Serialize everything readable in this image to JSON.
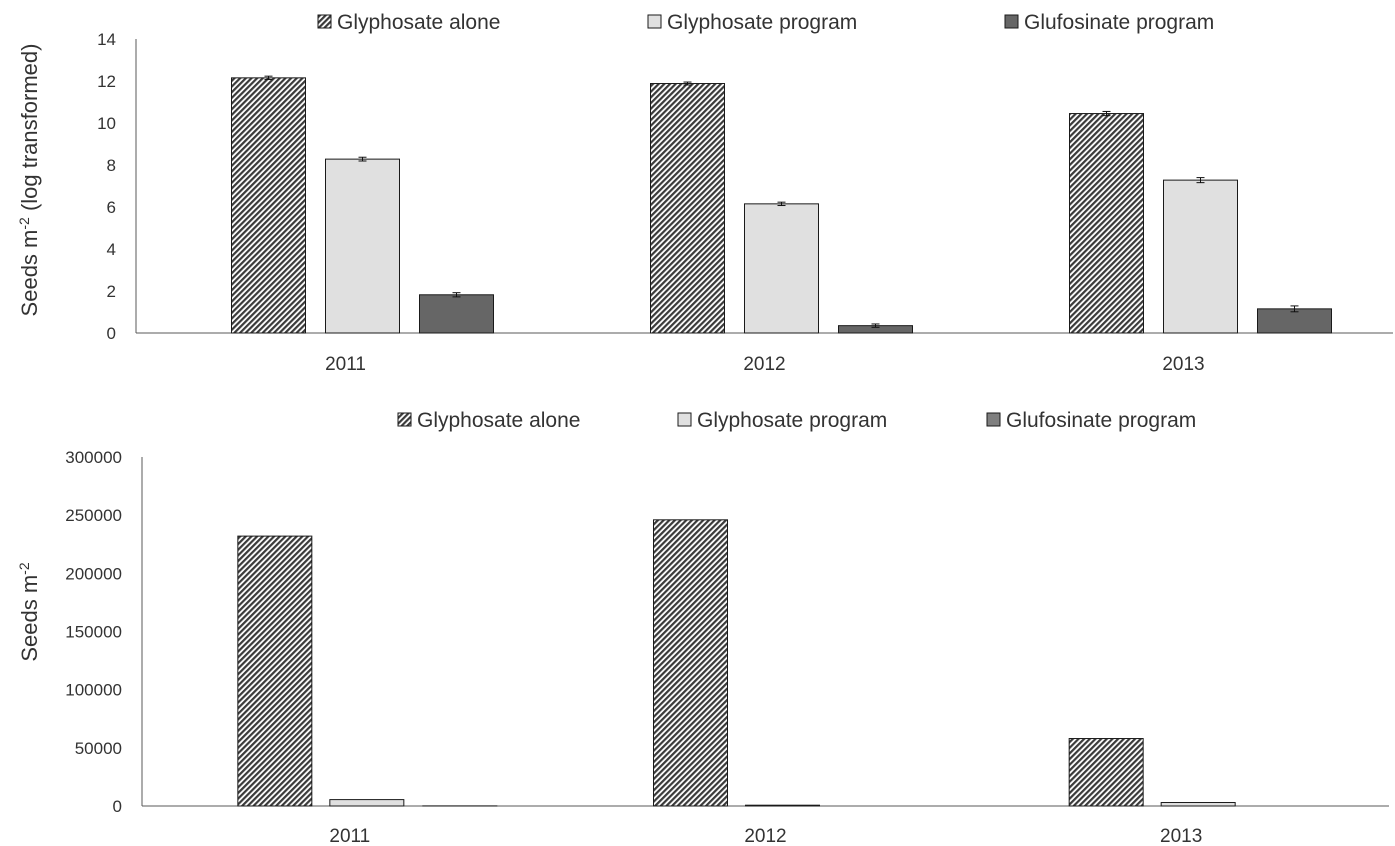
{
  "chart_data": [
    {
      "type": "bar",
      "categories": [
        "2011",
        "2012",
        "2013"
      ],
      "series": [
        {
          "name": "Glyphosate alone",
          "values": [
            12.15,
            11.88,
            10.45
          ],
          "errors": [
            0.08,
            0.07,
            0.1
          ]
        },
        {
          "name": "Glyphosate program",
          "values": [
            8.28,
            6.15,
            7.28
          ],
          "errors": [
            0.09,
            0.08,
            0.12
          ]
        },
        {
          "name": "Glufosinate program",
          "values": [
            1.82,
            0.35,
            1.15
          ],
          "errors": [
            0.1,
            0.08,
            0.14
          ]
        }
      ],
      "ylabel": "Seeds m",
      "ylabel_superscript": "-2",
      "ylabel_suffix": " (log transformed)",
      "ylim": [
        0,
        14
      ],
      "yticks": [
        "0",
        "2",
        "4",
        "6",
        "8",
        "10",
        "12",
        "14"
      ],
      "legend_position": "top",
      "grid": false
    },
    {
      "type": "bar",
      "categories": [
        "2011",
        "2012",
        "2013"
      ],
      "series": [
        {
          "name": "Glyphosate alone",
          "values": [
            232000,
            246000,
            58000
          ]
        },
        {
          "name": "Glyphosate program",
          "values": [
            5500,
            700,
            3000
          ]
        },
        {
          "name": "Glufosinate program",
          "values": [
            100,
            0,
            0
          ]
        }
      ],
      "ylabel": "Seeds m",
      "ylabel_superscript": "-2",
      "ylabel_suffix": "",
      "ylim": [
        0,
        300000
      ],
      "yticks": [
        "0",
        "50000",
        "100000",
        "150000",
        "200000",
        "250000",
        "300000"
      ],
      "legend_position": "top",
      "grid": false
    }
  ],
  "colors": {
    "hatch": "#3a3a3a",
    "glyphosate_program": "#e0e0e0",
    "glufosinate_program_top": "#666666",
    "glufosinate_program_bottom": "#7f7f7f",
    "axis": "#595959",
    "text": "#333333"
  }
}
